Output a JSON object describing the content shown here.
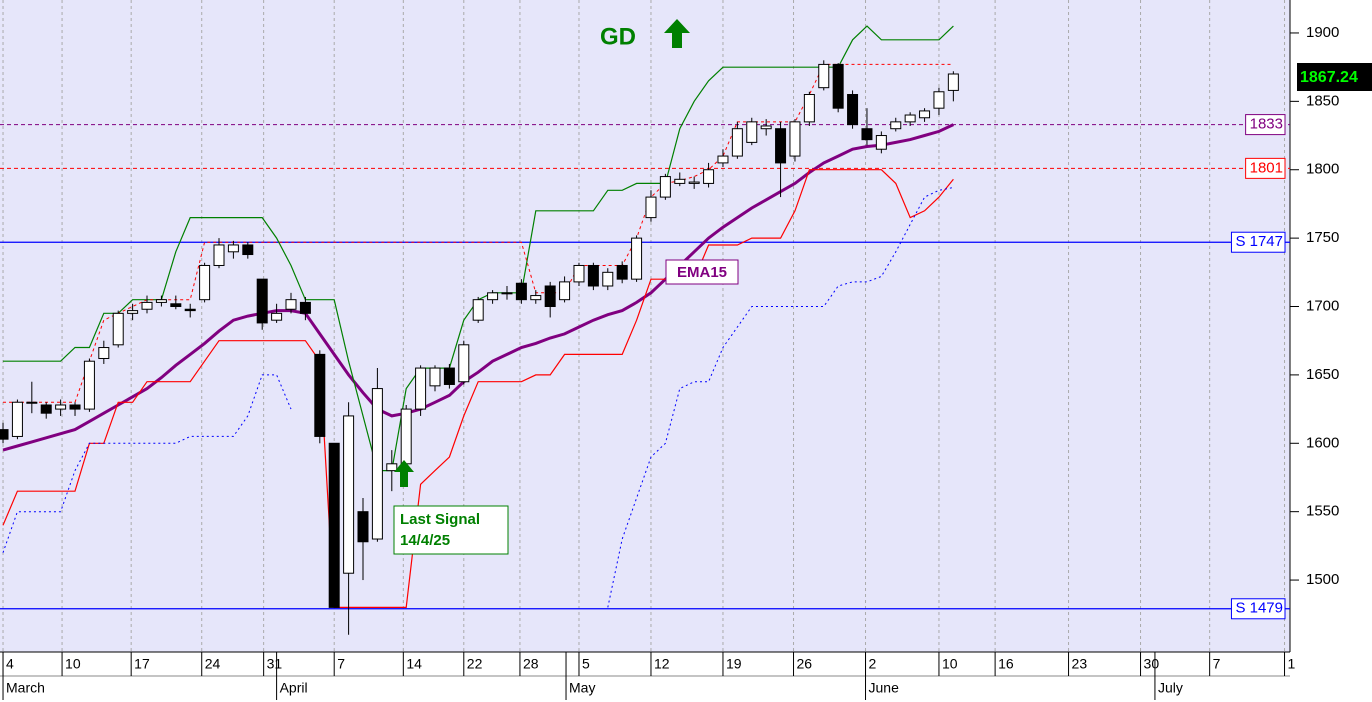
{
  "chart_data": {
    "type": "candlestick",
    "annotations": {
      "signal": "GD",
      "ema_label": "EMA15",
      "last_signal": [
        "Last Signal",
        "14/4/25"
      ]
    },
    "last_price": 1867.24,
    "ylim": [
      1447.4,
      1924.1
    ],
    "yticks": [
      1500,
      1550,
      1600,
      1650,
      1700,
      1750,
      1800,
      1850,
      1900
    ],
    "xlim": [
      -0.21,
      89.38
    ],
    "xticks": [
      {
        "value": 0,
        "label": "4"
      },
      {
        "value": 4.1,
        "label": "10"
      },
      {
        "value": 8.9,
        "label": "17"
      },
      {
        "value": 13.8,
        "label": "24"
      },
      {
        "value": 18.1,
        "label": "31"
      },
      {
        "value": 23,
        "label": "7"
      },
      {
        "value": 27.8,
        "label": "14"
      },
      {
        "value": 32,
        "label": "22"
      },
      {
        "value": 35.9,
        "label": "28"
      },
      {
        "value": 40,
        "label": "5"
      },
      {
        "value": 45,
        "label": "12"
      },
      {
        "value": 50,
        "label": "19"
      },
      {
        "value": 54.9,
        "label": "26"
      },
      {
        "value": 59.9,
        "label": "2"
      },
      {
        "value": 65,
        "label": "10"
      },
      {
        "value": 68.9,
        "label": "16"
      },
      {
        "value": 74,
        "label": "23"
      },
      {
        "value": 79,
        "label": "30"
      },
      {
        "value": 83.8,
        "label": "7"
      },
      {
        "value": 89,
        "label": "1"
      }
    ],
    "months": [
      {
        "value": 0,
        "label": "March"
      },
      {
        "value": 19,
        "label": "April"
      },
      {
        "value": 39.1,
        "label": "May"
      },
      {
        "value": 59.9,
        "label": "June"
      },
      {
        "value": 80,
        "label": "July"
      }
    ],
    "grid": "x",
    "levels": [
      {
        "value": 1833,
        "label": "1833",
        "color": "#800080",
        "dashed": true
      },
      {
        "value": 1801,
        "label": "1801",
        "color": "#ff0000",
        "dashed": true
      },
      {
        "value": 1747,
        "label": "S 1747",
        "color": "#0000ff",
        "dashed": false
      },
      {
        "value": 1479,
        "label": "S 1479",
        "color": "#0000ff",
        "dashed": false
      }
    ],
    "open": [
      1610,
      1605,
      1630,
      1628,
      1625,
      1628,
      1625,
      1662,
      1672,
      1695,
      1698,
      1703,
      1702,
      1698,
      1705,
      1730,
      1740,
      1745,
      1720,
      1690,
      1698,
      1703,
      1665,
      1600,
      1505,
      1550,
      1530,
      1580,
      1585,
      1625,
      1642,
      1655,
      1645,
      1690,
      1705,
      1710,
      1717,
      1705,
      1715,
      1705,
      1718,
      1730,
      1715,
      1730,
      1720,
      1765,
      1780,
      1790,
      1790,
      1790,
      1805,
      1810,
      1820,
      1830,
      1830,
      1810,
      1835,
      1860,
      1877,
      1855,
      1830,
      1815,
      1830,
      1835,
      1838,
      1845,
      1858
    ],
    "high": [
      1615,
      1632,
      1645,
      1630,
      1632,
      1630,
      1662,
      1675,
      1697,
      1702,
      1708,
      1708,
      1708,
      1702,
      1732,
      1750,
      1748,
      1747,
      1720,
      1702,
      1710,
      1707,
      1668,
      1600,
      1630,
      1560,
      1655,
      1595,
      1628,
      1657,
      1657,
      1658,
      1675,
      1707,
      1712,
      1715,
      1720,
      1712,
      1718,
      1722,
      1732,
      1732,
      1728,
      1733,
      1752,
      1785,
      1797,
      1798,
      1795,
      1805,
      1815,
      1835,
      1838,
      1837,
      1835,
      1837,
      1857,
      1880,
      1878,
      1858,
      1845,
      1828,
      1838,
      1842,
      1845,
      1860,
      1872
    ],
    "low": [
      1600,
      1603,
      1622,
      1618,
      1620,
      1620,
      1623,
      1658,
      1670,
      1690,
      1695,
      1700,
      1698,
      1692,
      1703,
      1728,
      1735,
      1735,
      1683,
      1688,
      1695,
      1690,
      1600,
      1480,
      1460,
      1500,
      1528,
      1565,
      1580,
      1620,
      1638,
      1640,
      1643,
      1688,
      1702,
      1705,
      1702,
      1702,
      1692,
      1703,
      1715,
      1712,
      1712,
      1717,
      1718,
      1762,
      1778,
      1788,
      1786,
      1787,
      1802,
      1808,
      1818,
      1825,
      1780,
      1806,
      1832,
      1858,
      1842,
      1830,
      1818,
      1812,
      1828,
      1832,
      1835,
      1840,
      1850
    ],
    "close": [
      1603,
      1630,
      1630,
      1622,
      1628,
      1625,
      1660,
      1670,
      1695,
      1697,
      1703,
      1705,
      1700,
      1697,
      1730,
      1745,
      1745,
      1738,
      1688,
      1695,
      1705,
      1695,
      1605,
      1480,
      1620,
      1528,
      1640,
      1585,
      1625,
      1655,
      1655,
      1643,
      1672,
      1705,
      1710,
      1710,
      1705,
      1708,
      1700,
      1718,
      1730,
      1715,
      1725,
      1720,
      1750,
      1780,
      1795,
      1793,
      1791,
      1800,
      1810,
      1830,
      1835,
      1832,
      1805,
      1835,
      1855,
      1877,
      1845,
      1833,
      1822,
      1825,
      1835,
      1840,
      1843,
      1857,
      1870
    ],
    "series": [
      {
        "name": "EMA15",
        "color": "#800080",
        "style": "thick",
        "values": [
          1595,
          1598,
          1601,
          1604,
          1607,
          1610,
          1616,
          1622,
          1628,
          1634,
          1640,
          1648,
          1657,
          1665,
          1673,
          1682,
          1690,
          1693,
          1695,
          1697,
          1697,
          1695,
          1680,
          1665,
          1650,
          1637,
          1625,
          1620,
          1622,
          1625,
          1630,
          1635,
          1645,
          1652,
          1660,
          1665,
          1670,
          1673,
          1677,
          1680,
          1685,
          1690,
          1694,
          1697,
          1703,
          1710,
          1720,
          1730,
          1740,
          1750,
          1758,
          1765,
          1772,
          1778,
          1784,
          1790,
          1798,
          1805,
          1810,
          1815,
          1817,
          1818,
          1820,
          1822,
          1825,
          1828,
          1833
        ]
      },
      {
        "color": "#008000",
        "style": "solid",
        "values": [
          1660,
          1660,
          1660,
          1660,
          1660,
          1670,
          1670,
          1695,
          1695,
          1705,
          1705,
          1705,
          1740,
          1765,
          1765,
          1765,
          1765,
          1765,
          1765,
          1750,
          1730,
          1705,
          1705,
          1705,
          1660,
          1620,
          1580,
          1580,
          1640,
          1655,
          1655,
          1655,
          1690,
          1705,
          1710,
          1710,
          1710,
          1770,
          1770,
          1770,
          1770,
          1770,
          1785,
          1785,
          1790,
          1790,
          1790,
          1830,
          1850,
          1865,
          1875,
          1875,
          1875,
          1875,
          1875,
          1875,
          1875,
          1875,
          1875,
          1895,
          1905,
          1895,
          1895,
          1895,
          1895,
          1895,
          1905
        ]
      },
      {
        "color": "#ff0000",
        "style": "solid",
        "values": [
          1540,
          1565,
          1565,
          1565,
          1565,
          1565,
          1600,
          1600,
          1630,
          1630,
          1645,
          1645,
          1645,
          1645,
          1660,
          1675,
          1675,
          1675,
          1675,
          1675,
          1675,
          1675,
          1660,
          1480,
          1480,
          1480,
          1480,
          1480,
          1480,
          1570,
          1580,
          1590,
          1620,
          1645,
          1645,
          1645,
          1645,
          1650,
          1650,
          1665,
          1665,
          1665,
          1665,
          1665,
          1690,
          1720,
          1720,
          1720,
          1720,
          1745,
          1745,
          1745,
          1750,
          1750,
          1750,
          1770,
          1800,
          1800,
          1800,
          1800,
          1800,
          1800,
          1790,
          1765,
          1770,
          1780,
          1793
        ]
      },
      {
        "color": "#ff0000",
        "style": "dashed",
        "values": [
          1630,
          1630,
          1630,
          1630,
          1630,
          1630,
          1660,
          1690,
          1695,
          1700,
          1705,
          1705,
          1705,
          1705,
          1747,
          1747,
          1747,
          1747,
          1747,
          1747,
          1747,
          1747,
          1747,
          1747,
          1747,
          1747,
          1747,
          1747,
          1747,
          1747,
          1747,
          1747,
          1747,
          1747,
          1747,
          1747,
          1747,
          1710,
          1710,
          1710,
          1730,
          1730,
          1730,
          1730,
          1750,
          1780,
          1790,
          1792,
          1795,
          1800,
          1810,
          1835,
          1835,
          1835,
          1835,
          1835,
          1855,
          1877,
          1877,
          1877,
          1877,
          1877,
          1877,
          1877,
          1877,
          1877,
          1877
        ]
      },
      {
        "color": "#0000ff",
        "style": "dotted",
        "values": [
          1520,
          1550,
          1550,
          1550,
          1550,
          1580,
          1600,
          1600,
          1600,
          1600,
          1600,
          1600,
          1600,
          1605,
          1605,
          1605,
          1605,
          1620,
          1650,
          1650,
          1625,
          null,
          null,
          null,
          null,
          null,
          null,
          null,
          null,
          null,
          null,
          null,
          null,
          null,
          null,
          null,
          null,
          null,
          null,
          null,
          null,
          null,
          1480,
          1530,
          1560,
          1590,
          1600,
          1640,
          1645,
          1645,
          1670,
          1685,
          1700,
          1700,
          1700,
          1700,
          1700,
          1700,
          1715,
          1718,
          1718,
          1722,
          1740,
          1760,
          1780,
          1785,
          1787
        ]
      }
    ]
  }
}
